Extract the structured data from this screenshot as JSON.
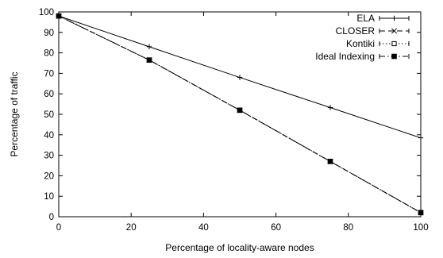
{
  "chart_data": {
    "type": "line",
    "xlabel": "Percentage of locality-aware nodes",
    "ylabel": "Percentage of traffic",
    "xlim": [
      0,
      100
    ],
    "ylim": [
      0,
      100
    ],
    "xticks": [
      0,
      20,
      40,
      60,
      80,
      100
    ],
    "yticks": [
      0,
      10,
      20,
      30,
      40,
      50,
      60,
      70,
      80,
      90,
      100
    ],
    "grid": false,
    "legend_position": "top-right",
    "x": [
      0,
      25,
      50,
      75,
      100
    ],
    "series": [
      {
        "name": "ELA",
        "marker": "plus",
        "dash": "solid",
        "values": [
          98,
          83,
          68,
          53.3,
          38.5
        ]
      },
      {
        "name": "CLOSER",
        "marker": "cross",
        "dash": "long-dash",
        "values": [
          98,
          76.5,
          52,
          27,
          2
        ]
      },
      {
        "name": "Kontiki",
        "marker": "open-square",
        "dash": "dotted",
        "values": [
          98,
          76.5,
          52,
          27,
          2
        ]
      },
      {
        "name": "Ideal Indexing",
        "marker": "filled-square",
        "dash": "dash-dot",
        "values": [
          98,
          76.5,
          52,
          27,
          2
        ]
      }
    ]
  }
}
